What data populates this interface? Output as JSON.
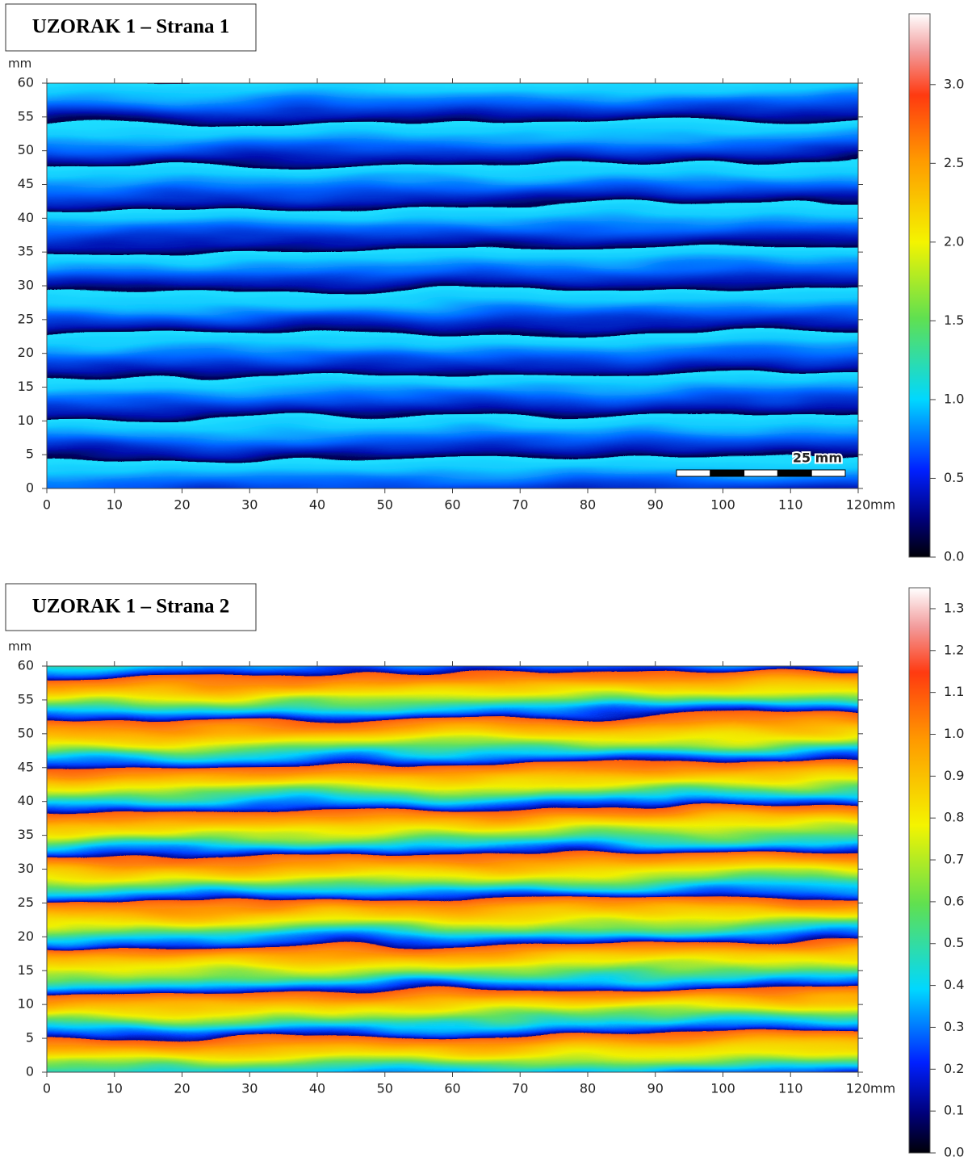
{
  "chart_data": [
    {
      "type": "heatmap",
      "title": "UZORAK 1 – Strana 1",
      "xlabel": "mm",
      "ylabel": "mm",
      "xlim": [
        0,
        120
      ],
      "xticks": [
        0,
        10,
        20,
        30,
        40,
        50,
        60,
        70,
        80,
        90,
        100,
        110,
        120
      ],
      "ylim": [
        0,
        60
      ],
      "yticks": [
        0,
        5,
        10,
        15,
        20,
        25,
        30,
        35,
        40,
        45,
        50,
        55,
        60
      ],
      "colorbar": {
        "lim": [
          0,
          3.45
        ],
        "ticks": [
          {
            "value": 0,
            "label": "0.0"
          },
          {
            "value": 0.5,
            "label": "0.5"
          },
          {
            "value": 1,
            "label": "1.0"
          },
          {
            "value": 1.5,
            "label": "1.5"
          },
          {
            "value": 2,
            "label": "2.0"
          },
          {
            "value": 2.5,
            "label": "2.5"
          },
          {
            "value": 3,
            "label": "3.0"
          }
        ]
      },
      "annotation": "25 mm"
    },
    {
      "type": "heatmap",
      "title": "UZORAK 1 – Strana 2",
      "xlabel": "mm",
      "ylabel": "mm",
      "xlim": [
        0,
        120
      ],
      "xticks": [
        0,
        10,
        20,
        30,
        40,
        50,
        60,
        70,
        80,
        90,
        100,
        110,
        120
      ],
      "ylim": [
        0,
        60
      ],
      "yticks": [
        0,
        5,
        10,
        15,
        20,
        25,
        30,
        35,
        40,
        45,
        50,
        55,
        60
      ],
      "colorbar": {
        "lim": [
          0,
          1.35
        ],
        "ticks": [
          {
            "value": 0,
            "label": "0.0"
          },
          {
            "value": 0.1,
            "label": "0.1"
          },
          {
            "value": 0.2,
            "label": "0.2"
          },
          {
            "value": 0.3,
            "label": "0.3"
          },
          {
            "value": 0.4,
            "label": "0.4"
          },
          {
            "value": 0.5,
            "label": "0.5"
          },
          {
            "value": 0.6,
            "label": "0.6"
          },
          {
            "value": 0.7,
            "label": "0.7"
          },
          {
            "value": 0.8,
            "label": "0.8"
          },
          {
            "value": 0.9,
            "label": "0.9"
          },
          {
            "value": 1,
            "label": "1.0"
          },
          {
            "value": 1.1,
            "label": "1.1"
          },
          {
            "value": 1.2,
            "label": "1.2"
          },
          {
            "value": 1.3,
            "label": "1.3"
          }
        ]
      }
    }
  ]
}
